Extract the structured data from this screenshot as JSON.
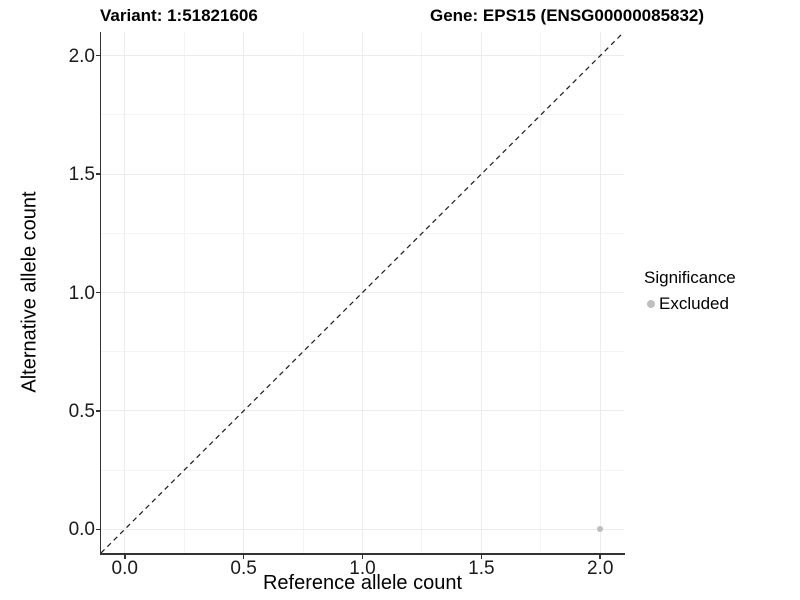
{
  "chart_data": {
    "type": "scatter",
    "titles": {
      "left": "Variant: 1:51821606",
      "right": "Gene: EPS15 (ENSG00000085832)"
    },
    "xlabel": "Reference allele count",
    "ylabel": "Alternative allele count",
    "xlim": [
      -0.1,
      2.1
    ],
    "ylim": [
      -0.1,
      2.1
    ],
    "x_tick_values": [
      0.0,
      0.5,
      1.0,
      1.5,
      2.0
    ],
    "y_tick_values": [
      0.0,
      0.5,
      1.0,
      1.5,
      2.0
    ],
    "x_tick_labels": [
      "0.0",
      "0.5",
      "1.0",
      "1.5",
      "2.0"
    ],
    "y_tick_labels": [
      "0.0",
      "0.5",
      "1.0",
      "1.5",
      "2.0"
    ],
    "minor_tick_values": [
      0.25,
      0.75,
      1.25,
      1.75
    ],
    "grid": true,
    "legend_position": "right",
    "reference_line": {
      "type": "identity",
      "style": "dashed",
      "color": "#1a1a1a",
      "from": [
        -0.1,
        -0.1
      ],
      "to": [
        2.1,
        2.1
      ]
    },
    "series": [
      {
        "name": "Excluded",
        "color": "#bebebe",
        "points": [
          {
            "x": 2.0,
            "y": 0.0
          }
        ]
      }
    ],
    "legend": {
      "title": "Significance",
      "entries": [
        {
          "label": "Excluded",
          "color": "#bebebe",
          "marker": "circle"
        }
      ]
    }
  },
  "colors": {
    "background": "#ffffff",
    "grid_major": "#ececec",
    "grid_minor": "#f4f4f4",
    "axis_line": "#333333",
    "tick_text": "#1a1a1a",
    "point": "#bebebe"
  }
}
